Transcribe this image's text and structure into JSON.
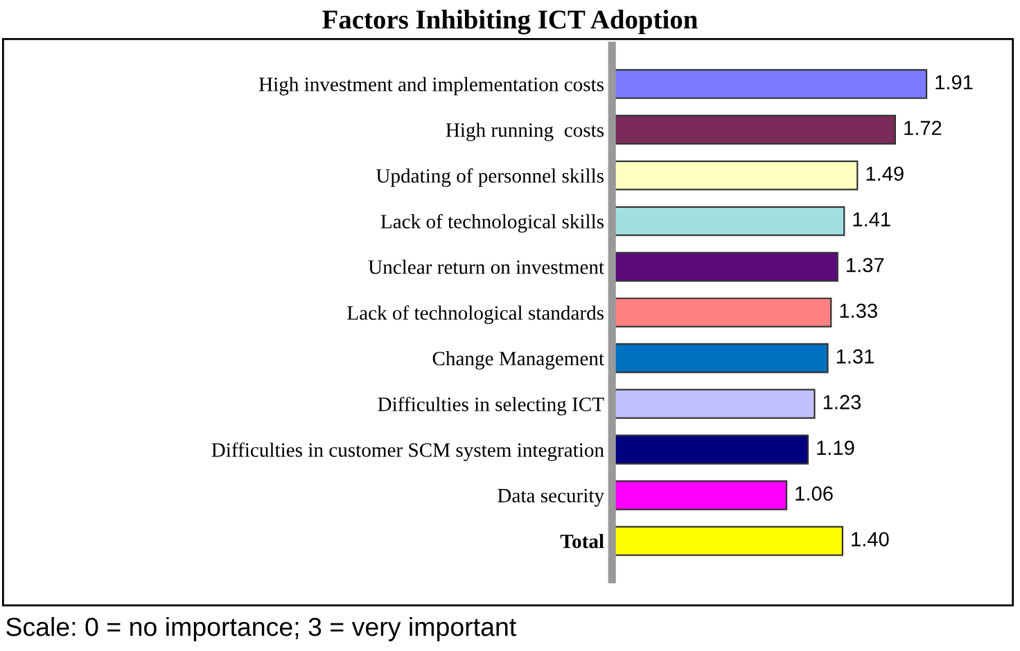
{
  "chart_data": {
    "type": "bar",
    "orientation": "horizontal",
    "title": "Factors Inhibiting ICT Adoption",
    "categories": [
      "High investment and implementation costs",
      "High running  costs",
      "Updating of personnel skills",
      "Lack of technological skills",
      "Unclear return on investment",
      "Lack of technological standards",
      "Change Management",
      "Difficulties in selecting ICT",
      "Difficulties in customer SCM system integration",
      "Data security",
      "Total"
    ],
    "values": [
      1.91,
      1.72,
      1.49,
      1.41,
      1.37,
      1.33,
      1.31,
      1.23,
      1.19,
      1.06,
      1.4
    ],
    "colors": [
      "#7b7bff",
      "#7b2a5a",
      "#ffffc0",
      "#a0e0e0",
      "#5a0a7a",
      "#ff8080",
      "#0070c0",
      "#c0c0ff",
      "#000080",
      "#ff00ff",
      "#ffff00"
    ],
    "value_labels": [
      "1.91",
      "1.72",
      "1.49",
      "1.41",
      "1.37",
      "1.33",
      "1.31",
      "1.23",
      "1.19",
      "1.06",
      "1.40"
    ],
    "annotations": [
      "Scale: 0 = no importance; 3 = very important"
    ],
    "grid": false,
    "legend": false
  }
}
